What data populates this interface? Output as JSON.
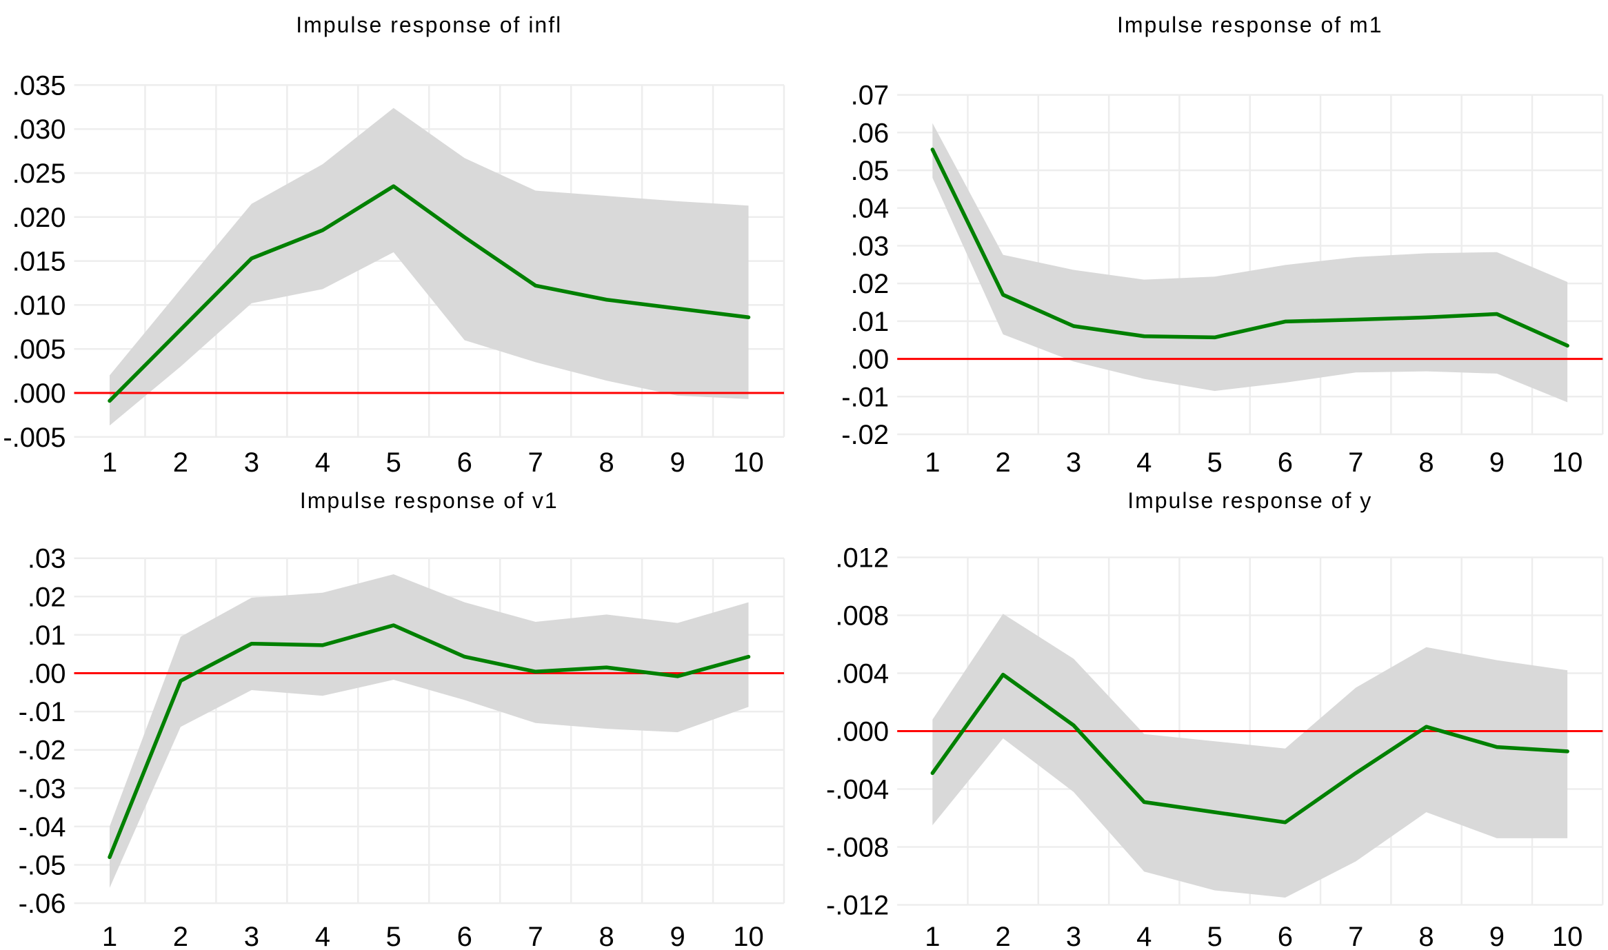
{
  "figure": {
    "background": "#ffffff",
    "n_panels": 4,
    "layout_hint": "2x2 grid of impulse-response panels, gray confidence band, green response line, red zero line, light gridlines, no legend"
  },
  "colors": {
    "response_line": "#008000",
    "zero_line": "#ff0000",
    "confidence_band": "#d9d9d9",
    "gridline": "#ededed",
    "text": "#000000"
  },
  "chart_data": [
    {
      "id": "infl",
      "type": "line",
      "title": "Impulse response of infl",
      "x": [
        1,
        2,
        3,
        4,
        5,
        6,
        7,
        8,
        9,
        10
      ],
      "xtick_labels": [
        "1",
        "2",
        "3",
        "4",
        "5",
        "6",
        "7",
        "8",
        "9",
        "10"
      ],
      "line": [
        -0.0009,
        0.0072,
        0.0153,
        0.0185,
        0.0235,
        0.0177,
        0.0122,
        0.0106,
        0.0096,
        0.0086
      ],
      "ci_upper": [
        0.002,
        0.0118,
        0.0215,
        0.026,
        0.0324,
        0.0267,
        0.023,
        0.0224,
        0.0218,
        0.0213
      ],
      "ci_lower": [
        -0.0037,
        0.003,
        0.0102,
        0.0118,
        0.016,
        0.006,
        0.0035,
        0.0014,
        -0.0003,
        -0.0007
      ],
      "ytick_labels": [
        ".035",
        ".030",
        ".025",
        ".020",
        ".015",
        ".010",
        ".005",
        ".000",
        "-.005"
      ],
      "ytick_values": [
        0.035,
        0.03,
        0.025,
        0.02,
        0.015,
        0.01,
        0.005,
        0.0,
        -0.005
      ],
      "ylim": [
        -0.005,
        0.035
      ],
      "zero_line": 0,
      "grid": "on",
      "legend": "none"
    },
    {
      "id": "m1",
      "type": "line",
      "title": "Impulse response of m1",
      "x": [
        1,
        2,
        3,
        4,
        5,
        6,
        7,
        8,
        9,
        10
      ],
      "xtick_labels": [
        "1",
        "2",
        "3",
        "4",
        "5",
        "6",
        "7",
        "8",
        "9",
        "10"
      ],
      "line": [
        0.0555,
        0.017,
        0.0087,
        0.006,
        0.0057,
        0.0099,
        0.0104,
        0.011,
        0.0119,
        0.0035
      ],
      "ci_upper": [
        0.0625,
        0.0276,
        0.0236,
        0.021,
        0.0218,
        0.0249,
        0.027,
        0.028,
        0.0283,
        0.0204
      ],
      "ci_lower": [
        0.048,
        0.0065,
        -0.0007,
        -0.0053,
        -0.0085,
        -0.0063,
        -0.0036,
        -0.0033,
        -0.0039,
        -0.0115
      ],
      "ytick_labels": [
        ".07",
        ".06",
        ".05",
        ".04",
        ".03",
        ".02",
        ".01",
        ".00",
        "-.01",
        "-.02"
      ],
      "ytick_values": [
        0.07,
        0.06,
        0.05,
        0.04,
        0.03,
        0.02,
        0.01,
        0.0,
        -0.01,
        -0.02
      ],
      "ylim": [
        -0.02,
        0.07
      ],
      "zero_line": 0,
      "grid": "on",
      "legend": "none"
    },
    {
      "id": "v1",
      "type": "line",
      "title": "Impulse response of v1",
      "x": [
        1,
        2,
        3,
        4,
        5,
        6,
        7,
        8,
        9,
        10
      ],
      "xtick_labels": [
        "1",
        "2",
        "3",
        "4",
        "5",
        "6",
        "7",
        "8",
        "9",
        "10"
      ],
      "line": [
        -0.048,
        -0.002,
        0.0077,
        0.0073,
        0.0125,
        0.0043,
        0.0004,
        0.0015,
        -0.0008,
        0.0043
      ],
      "ci_upper": [
        -0.04,
        0.0095,
        0.0197,
        0.021,
        0.0258,
        0.0185,
        0.0134,
        0.0153,
        0.0131,
        0.0185
      ],
      "ci_lower": [
        -0.056,
        -0.014,
        -0.0044,
        -0.0059,
        -0.0017,
        -0.007,
        -0.013,
        -0.0145,
        -0.0154,
        -0.0088
      ],
      "ytick_labels": [
        ".03",
        ".02",
        ".01",
        ".00",
        "-.01",
        "-.02",
        "-.03",
        "-.04",
        "-.05",
        "-.06"
      ],
      "ytick_values": [
        0.03,
        0.02,
        0.01,
        0.0,
        -0.01,
        -0.02,
        -0.03,
        -0.04,
        -0.05,
        -0.06
      ],
      "ylim": [
        -0.06,
        0.03
      ],
      "zero_line": 0,
      "grid": "on",
      "legend": "none"
    },
    {
      "id": "y",
      "type": "line",
      "title": "Impulse response of y",
      "x": [
        1,
        2,
        3,
        4,
        5,
        6,
        7,
        8,
        9,
        10
      ],
      "xtick_labels": [
        "1",
        "2",
        "3",
        "4",
        "5",
        "6",
        "7",
        "8",
        "9",
        "10"
      ],
      "line": [
        -0.0029,
        0.0039,
        0.0004,
        -0.0049,
        -0.0056,
        -0.0063,
        -0.0029,
        0.0003,
        -0.0011,
        -0.0014
      ],
      "ci_upper": [
        0.0008,
        0.0081,
        0.005,
        -0.0002,
        -0.0007,
        -0.0012,
        0.003,
        0.0058,
        0.0049,
        0.0042
      ],
      "ci_lower": [
        -0.0065,
        -0.0005,
        -0.0042,
        -0.0097,
        -0.011,
        -0.0115,
        -0.009,
        -0.0056,
        -0.0074,
        -0.0074
      ],
      "ytick_labels": [
        ".012",
        ".008",
        ".004",
        ".000",
        "-.004",
        "-.008",
        "-.012"
      ],
      "ytick_values": [
        0.012,
        0.008,
        0.004,
        0.0,
        -0.004,
        -0.008,
        -0.012
      ],
      "ylim": [
        -0.012,
        0.012
      ],
      "zero_line": 0,
      "grid": "on",
      "legend": "none"
    }
  ]
}
